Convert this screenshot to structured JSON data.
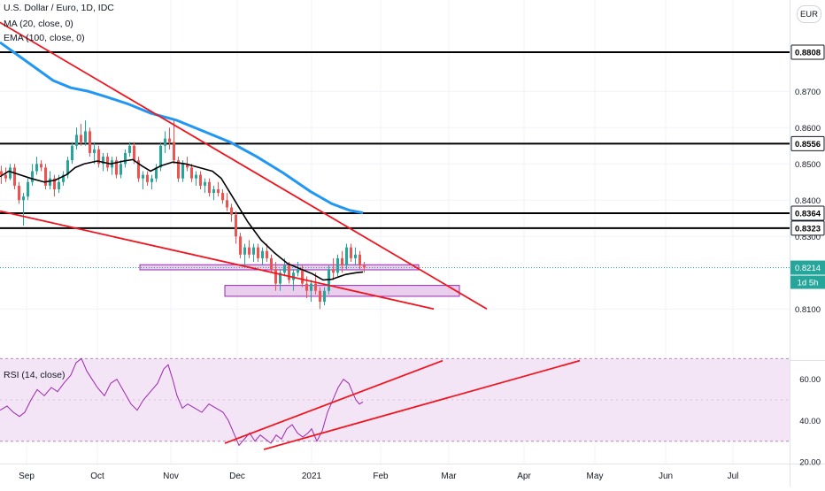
{
  "header": {
    "symbol_line": "U.S. Dollar / Euro, 1D, IDC",
    "ma_line": "MA (20, close, 0)",
    "ema_line": "EMA (100, close, 0)",
    "currency_button": "EUR",
    "rsi_title": "RSI (14, close)"
  },
  "colors": {
    "up": "#26a69a",
    "down": "#ef5350",
    "ma": "#000000",
    "ema": "#2196f3",
    "trendline": "#f0141e",
    "zone_fill": "#e1bee7",
    "zone_stroke": "#9c27b0",
    "rsi_line": "#9c27b0",
    "rsi_band": "#f3e5f5",
    "price_badge": "#26a69a"
  },
  "chart_data": {
    "type": "candlestick",
    "x_ticks": [
      "Sep",
      "Oct",
      "Nov",
      "Dec",
      "2021",
      "Feb",
      "Mar",
      "Apr",
      "May",
      "Jun",
      "Jul"
    ],
    "y_ticks": [
      "0.8700",
      "0.8600",
      "0.8500",
      "0.8400",
      "0.8300",
      "0.8100"
    ],
    "horizontal_levels": [
      "0.8808",
      "0.8556",
      "0.8364",
      "0.8323"
    ],
    "last_price": "0.8214",
    "countdown": "1d 5h",
    "ylim": [
      0.808,
      0.89
    ],
    "series": [
      {
        "name": "MA (20, close, 0)",
        "kind": "line",
        "points": [
          [
            0,
            0.8465
          ],
          [
            10,
            0.848
          ],
          [
            20,
            0.8472
          ],
          [
            35,
            0.846
          ],
          [
            50,
            0.845
          ],
          [
            62,
            0.8455
          ],
          [
            75,
            0.847
          ],
          [
            85,
            0.849
          ],
          [
            95,
            0.85
          ],
          [
            110,
            0.8508
          ],
          [
            125,
            0.85
          ],
          [
            140,
            0.8508
          ],
          [
            150,
            0.8512
          ],
          [
            160,
            0.8495
          ],
          [
            170,
            0.848
          ],
          [
            182,
            0.8495
          ],
          [
            195,
            0.8505
          ],
          [
            210,
            0.85
          ],
          [
            225,
            0.849
          ],
          [
            240,
            0.848
          ],
          [
            250,
            0.846
          ],
          [
            260,
            0.842
          ],
          [
            270,
            0.838
          ],
          [
            280,
            0.834
          ],
          [
            295,
            0.829
          ],
          [
            310,
            0.8255
          ],
          [
            325,
            0.8225
          ],
          [
            340,
            0.821
          ],
          [
            352,
            0.8198
          ],
          [
            365,
            0.818
          ],
          [
            375,
            0.8182
          ],
          [
            390,
            0.8195
          ],
          [
            402,
            0.82
          ],
          [
            410,
            0.8202
          ]
        ]
      },
      {
        "name": "EMA (100, close, 0)",
        "kind": "line",
        "points": [
          [
            0,
            0.8835
          ],
          [
            20,
            0.88
          ],
          [
            40,
            0.8765
          ],
          [
            60,
            0.873
          ],
          [
            80,
            0.871
          ],
          [
            100,
            0.87
          ],
          [
            120,
            0.8685
          ],
          [
            145,
            0.8665
          ],
          [
            170,
            0.864
          ],
          [
            200,
            0.862
          ],
          [
            230,
            0.859
          ],
          [
            260,
            0.856
          ],
          [
            290,
            0.852
          ],
          [
            320,
            0.8475
          ],
          [
            350,
            0.8425
          ],
          [
            375,
            0.839
          ],
          [
            395,
            0.8372
          ],
          [
            410,
            0.8365
          ]
        ]
      }
    ],
    "candles": [
      [
        0,
        0.848,
        0.8495,
        0.8445,
        0.847
      ],
      [
        5,
        0.847,
        0.849,
        0.845,
        0.846
      ],
      [
        10,
        0.846,
        0.85,
        0.8455,
        0.849
      ],
      [
        15,
        0.849,
        0.85,
        0.843,
        0.844
      ],
      [
        20,
        0.844,
        0.845,
        0.839,
        0.84
      ],
      [
        25,
        0.84,
        0.842,
        0.833,
        0.841
      ],
      [
        30,
        0.841,
        0.846,
        0.84,
        0.845
      ],
      [
        35,
        0.845,
        0.85,
        0.844,
        0.848
      ],
      [
        40,
        0.848,
        0.852,
        0.847,
        0.85
      ],
      [
        45,
        0.85,
        0.851,
        0.848,
        0.849
      ],
      [
        50,
        0.849,
        0.85,
        0.843,
        0.844
      ],
      [
        55,
        0.844,
        0.848,
        0.843,
        0.846
      ],
      [
        60,
        0.846,
        0.847,
        0.841,
        0.843
      ],
      [
        65,
        0.843,
        0.847,
        0.842,
        0.845
      ],
      [
        70,
        0.845,
        0.848,
        0.844,
        0.847
      ],
      [
        75,
        0.847,
        0.852,
        0.846,
        0.851
      ],
      [
        80,
        0.851,
        0.856,
        0.85,
        0.855
      ],
      [
        85,
        0.855,
        0.86,
        0.854,
        0.858
      ],
      [
        90,
        0.858,
        0.861,
        0.855,
        0.856
      ],
      [
        95,
        0.856,
        0.862,
        0.855,
        0.859
      ],
      [
        100,
        0.859,
        0.86,
        0.852,
        0.853
      ],
      [
        105,
        0.853,
        0.856,
        0.85,
        0.854
      ],
      [
        110,
        0.854,
        0.855,
        0.849,
        0.85
      ],
      [
        115,
        0.85,
        0.853,
        0.848,
        0.852
      ],
      [
        120,
        0.852,
        0.853,
        0.848,
        0.849
      ],
      [
        125,
        0.849,
        0.852,
        0.847,
        0.851
      ],
      [
        130,
        0.851,
        0.852,
        0.846,
        0.847
      ],
      [
        135,
        0.847,
        0.851,
        0.846,
        0.85
      ],
      [
        140,
        0.85,
        0.854,
        0.849,
        0.853
      ],
      [
        145,
        0.853,
        0.856,
        0.852,
        0.855
      ],
      [
        150,
        0.855,
        0.856,
        0.85,
        0.851
      ],
      [
        155,
        0.851,
        0.852,
        0.845,
        0.846
      ],
      [
        160,
        0.846,
        0.848,
        0.843,
        0.847
      ],
      [
        165,
        0.847,
        0.848,
        0.844,
        0.845
      ],
      [
        170,
        0.845,
        0.847,
        0.843,
        0.846
      ],
      [
        175,
        0.846,
        0.85,
        0.845,
        0.849
      ],
      [
        180,
        0.849,
        0.856,
        0.848,
        0.855
      ],
      [
        185,
        0.855,
        0.859,
        0.853,
        0.857
      ],
      [
        190,
        0.857,
        0.86,
        0.854,
        0.856
      ],
      [
        195,
        0.856,
        0.862,
        0.85,
        0.851
      ],
      [
        200,
        0.851,
        0.852,
        0.845,
        0.846
      ],
      [
        205,
        0.846,
        0.851,
        0.845,
        0.85
      ],
      [
        210,
        0.85,
        0.852,
        0.848,
        0.849
      ],
      [
        215,
        0.849,
        0.85,
        0.845,
        0.846
      ],
      [
        220,
        0.846,
        0.848,
        0.844,
        0.847
      ],
      [
        225,
        0.847,
        0.848,
        0.843,
        0.844
      ],
      [
        230,
        0.844,
        0.846,
        0.842,
        0.845
      ],
      [
        235,
        0.845,
        0.846,
        0.841,
        0.842
      ],
      [
        240,
        0.842,
        0.844,
        0.84,
        0.843
      ],
      [
        245,
        0.843,
        0.845,
        0.841,
        0.842
      ],
      [
        250,
        0.842,
        0.843,
        0.839,
        0.84
      ],
      [
        255,
        0.84,
        0.842,
        0.837,
        0.838
      ],
      [
        260,
        0.838,
        0.839,
        0.834,
        0.836
      ],
      [
        265,
        0.836,
        0.837,
        0.828,
        0.83
      ],
      [
        270,
        0.83,
        0.831,
        0.824,
        0.825
      ],
      [
        275,
        0.825,
        0.828,
        0.822,
        0.827
      ],
      [
        280,
        0.827,
        0.829,
        0.824,
        0.825
      ],
      [
        285,
        0.825,
        0.828,
        0.823,
        0.827
      ],
      [
        290,
        0.827,
        0.828,
        0.823,
        0.824
      ],
      [
        295,
        0.824,
        0.827,
        0.822,
        0.826
      ],
      [
        300,
        0.826,
        0.828,
        0.823,
        0.824
      ],
      [
        305,
        0.824,
        0.825,
        0.82,
        0.821
      ],
      [
        310,
        0.821,
        0.823,
        0.815,
        0.817
      ],
      [
        315,
        0.817,
        0.821,
        0.815,
        0.82
      ],
      [
        320,
        0.82,
        0.824,
        0.819,
        0.822
      ],
      [
        325,
        0.822,
        0.823,
        0.817,
        0.818
      ],
      [
        330,
        0.818,
        0.821,
        0.815,
        0.82
      ],
      [
        335,
        0.82,
        0.823,
        0.819,
        0.821
      ],
      [
        340,
        0.821,
        0.822,
        0.816,
        0.817
      ],
      [
        345,
        0.817,
        0.819,
        0.813,
        0.815
      ],
      [
        350,
        0.815,
        0.818,
        0.812,
        0.817
      ],
      [
        355,
        0.817,
        0.82,
        0.814,
        0.815
      ],
      [
        360,
        0.815,
        0.816,
        0.81,
        0.812
      ],
      [
        365,
        0.812,
        0.816,
        0.811,
        0.815
      ],
      [
        370,
        0.815,
        0.822,
        0.814,
        0.821
      ],
      [
        375,
        0.821,
        0.824,
        0.818,
        0.82
      ],
      [
        380,
        0.82,
        0.825,
        0.819,
        0.824
      ],
      [
        385,
        0.824,
        0.826,
        0.82,
        0.822
      ],
      [
        390,
        0.822,
        0.828,
        0.821,
        0.827
      ],
      [
        395,
        0.827,
        0.828,
        0.823,
        0.824
      ],
      [
        400,
        0.824,
        0.827,
        0.822,
        0.825
      ],
      [
        405,
        0.825,
        0.826,
        0.821,
        0.822
      ],
      [
        410,
        0.822,
        0.823,
        0.82,
        0.8214
      ]
    ],
    "trendlines": [
      [
        [
          0,
          0.889
        ],
        [
          550,
          0.81
        ]
      ],
      [
        [
          0,
          0.837
        ],
        [
          490,
          0.81
        ]
      ]
    ],
    "zones": [
      {
        "x1": 158,
        "x2": 473,
        "y_low": 0.8208,
        "y_high": 0.8222
      },
      {
        "x1": 254,
        "x2": 519,
        "y_low": 0.8135,
        "y_high": 0.8165
      }
    ],
    "rsi": {
      "title": "RSI (14, close)",
      "y_ticks": [
        "60.00",
        "40.00",
        "20.00"
      ],
      "ylim": [
        15,
        70
      ],
      "band": [
        30,
        70
      ],
      "values": [
        [
          0,
          45
        ],
        [
          8,
          47
        ],
        [
          15,
          44
        ],
        [
          22,
          42
        ],
        [
          28,
          44
        ],
        [
          35,
          50
        ],
        [
          42,
          55
        ],
        [
          50,
          52
        ],
        [
          58,
          56
        ],
        [
          65,
          54
        ],
        [
          72,
          58
        ],
        [
          80,
          62
        ],
        [
          86,
          68
        ],
        [
          92,
          70
        ],
        [
          98,
          64
        ],
        [
          104,
          60
        ],
        [
          110,
          56
        ],
        [
          118,
          52
        ],
        [
          125,
          58
        ],
        [
          132,
          60
        ],
        [
          140,
          54
        ],
        [
          148,
          48
        ],
        [
          155,
          45
        ],
        [
          162,
          50
        ],
        [
          170,
          54
        ],
        [
          178,
          58
        ],
        [
          185,
          65
        ],
        [
          190,
          67
        ],
        [
          195,
          60
        ],
        [
          200,
          52
        ],
        [
          206,
          46
        ],
        [
          212,
          48
        ],
        [
          220,
          46
        ],
        [
          228,
          44
        ],
        [
          236,
          48
        ],
        [
          244,
          46
        ],
        [
          252,
          44
        ],
        [
          258,
          40
        ],
        [
          262,
          36
        ],
        [
          266,
          32
        ],
        [
          270,
          28
        ],
        [
          276,
          31
        ],
        [
          282,
          34
        ],
        [
          288,
          30
        ],
        [
          294,
          33
        ],
        [
          300,
          31
        ],
        [
          306,
          29
        ],
        [
          312,
          33
        ],
        [
          318,
          31
        ],
        [
          324,
          36
        ],
        [
          330,
          38
        ],
        [
          336,
          34
        ],
        [
          342,
          32
        ],
        [
          348,
          34
        ],
        [
          352,
          36
        ],
        [
          358,
          30
        ],
        [
          364,
          35
        ],
        [
          370,
          44
        ],
        [
          376,
          50
        ],
        [
          382,
          56
        ],
        [
          388,
          60
        ],
        [
          394,
          58
        ],
        [
          398,
          54
        ],
        [
          402,
          50
        ],
        [
          406,
          48
        ],
        [
          410,
          49
        ]
      ],
      "trendlines": [
        [
          [
            254,
            29
          ],
          [
            500,
            69
          ]
        ],
        [
          [
            298,
            26
          ],
          [
            655,
            69
          ]
        ]
      ]
    }
  }
}
